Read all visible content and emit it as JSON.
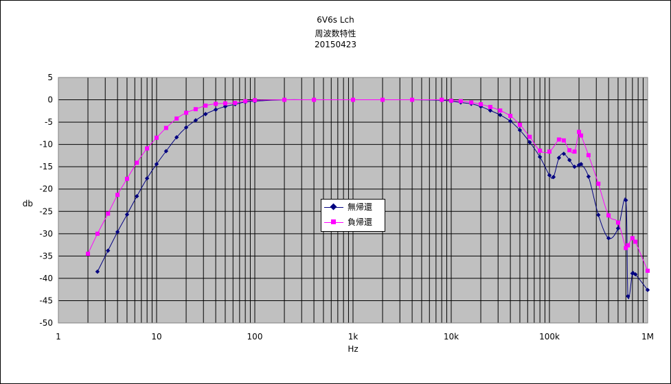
{
  "chart_data": {
    "type": "line",
    "title": [
      "6V6s  Lch",
      "周波数特性",
      "20150423"
    ],
    "xlabel": "Hz",
    "ylabel": "db",
    "x_scale": "log",
    "xlim": [
      1,
      1000000
    ],
    "ylim": [
      -50,
      5
    ],
    "y_ticks": [
      5,
      0,
      -5,
      -10,
      -15,
      -20,
      -25,
      -30,
      -35,
      -40,
      -45,
      -50
    ],
    "y_tick_labels": [
      "5",
      "0",
      "-5",
      "-10",
      "-15",
      "-20",
      "-25",
      "-30",
      "-35",
      "-40",
      "-45",
      "-50"
    ],
    "x_ticks": [
      1,
      10,
      100,
      1000,
      10000,
      100000,
      1000000
    ],
    "x_tick_labels": [
      "1",
      "10",
      "100",
      "1k",
      "10k",
      "100k",
      "1M"
    ],
    "grid": true,
    "legend_position": "center",
    "series": [
      {
        "name": "無帰還",
        "color": "#000080",
        "marker": "diamond",
        "points": [
          [
            2.5,
            -38.5
          ],
          [
            3.2,
            -33.8
          ],
          [
            4,
            -29.6
          ],
          [
            5,
            -25.7
          ],
          [
            6.3,
            -21.6
          ],
          [
            8,
            -17.6
          ],
          [
            10,
            -14.4
          ],
          [
            12.5,
            -11.5
          ],
          [
            16,
            -8.4
          ],
          [
            20,
            -6.2
          ],
          [
            25,
            -4.6
          ],
          [
            31.5,
            -3.2
          ],
          [
            40,
            -2.2
          ],
          [
            50,
            -1.5
          ],
          [
            63,
            -1.0
          ],
          [
            80,
            -0.5
          ],
          [
            100,
            -0.3
          ],
          [
            200,
            0
          ],
          [
            400,
            0
          ],
          [
            1000,
            0
          ],
          [
            2000,
            0
          ],
          [
            4000,
            0
          ],
          [
            8000,
            -0.1
          ],
          [
            10000,
            -0.3
          ],
          [
            12500,
            -0.6
          ],
          [
            16000,
            -0.9
          ],
          [
            20000,
            -1.5
          ],
          [
            25000,
            -2.4
          ],
          [
            31500,
            -3.4
          ],
          [
            40000,
            -4.8
          ],
          [
            50000,
            -6.8
          ],
          [
            63000,
            -9.5
          ],
          [
            80000,
            -12.8
          ],
          [
            100000,
            -16.9
          ],
          [
            110000,
            -17.3
          ],
          [
            125000,
            -13.0
          ],
          [
            140000,
            -12.1
          ],
          [
            160000,
            -13.5
          ],
          [
            180000,
            -15.0
          ],
          [
            200000,
            -14.6
          ],
          [
            210000,
            -14.4
          ],
          [
            250000,
            -17.2
          ],
          [
            315000,
            -25.8
          ],
          [
            400000,
            -31.0
          ],
          [
            500000,
            -28.8
          ],
          [
            600000,
            -22.5
          ],
          [
            630000,
            -44.0
          ],
          [
            700000,
            -38.9
          ],
          [
            750000,
            -39.1
          ],
          [
            1000000,
            -42.6
          ]
        ]
      },
      {
        "name": "負帰還",
        "color": "#ff00ff",
        "marker": "square",
        "points": [
          [
            2,
            -34.5
          ],
          [
            2.5,
            -30.0
          ],
          [
            3.2,
            -25.5
          ],
          [
            4,
            -21.3
          ],
          [
            5,
            -17.7
          ],
          [
            6.3,
            -14.1
          ],
          [
            8,
            -10.9
          ],
          [
            10,
            -8.5
          ],
          [
            12.5,
            -6.3
          ],
          [
            16,
            -4.2
          ],
          [
            20,
            -2.9
          ],
          [
            25,
            -2.1
          ],
          [
            31.5,
            -1.3
          ],
          [
            40,
            -0.9
          ],
          [
            50,
            -0.8
          ],
          [
            63,
            -0.7
          ],
          [
            80,
            -0.3
          ],
          [
            100,
            -0.1
          ],
          [
            200,
            0
          ],
          [
            400,
            0
          ],
          [
            1000,
            0
          ],
          [
            2000,
            0
          ],
          [
            4000,
            0
          ],
          [
            8000,
            0
          ],
          [
            10000,
            -0.2
          ],
          [
            12500,
            -0.3
          ],
          [
            16000,
            -0.6
          ],
          [
            20000,
            -1.0
          ],
          [
            25000,
            -1.6
          ],
          [
            31500,
            -2.4
          ],
          [
            40000,
            -3.6
          ],
          [
            50000,
            -5.6
          ],
          [
            63000,
            -8.3
          ],
          [
            80000,
            -11.4
          ],
          [
            100000,
            -11.6
          ],
          [
            125000,
            -8.9
          ],
          [
            140000,
            -9.1
          ],
          [
            160000,
            -11.3
          ],
          [
            180000,
            -11.6
          ],
          [
            200000,
            -7.2
          ],
          [
            210000,
            -8.0
          ],
          [
            250000,
            -12.4
          ],
          [
            315000,
            -18.8
          ],
          [
            400000,
            -25.9
          ],
          [
            500000,
            -27.5
          ],
          [
            600000,
            -33.2
          ],
          [
            630000,
            -32.6
          ],
          [
            700000,
            -31.0
          ],
          [
            750000,
            -31.8
          ],
          [
            1000000,
            -38.3
          ]
        ]
      }
    ]
  },
  "legend": {
    "items": [
      "無帰還",
      "負帰還"
    ]
  }
}
